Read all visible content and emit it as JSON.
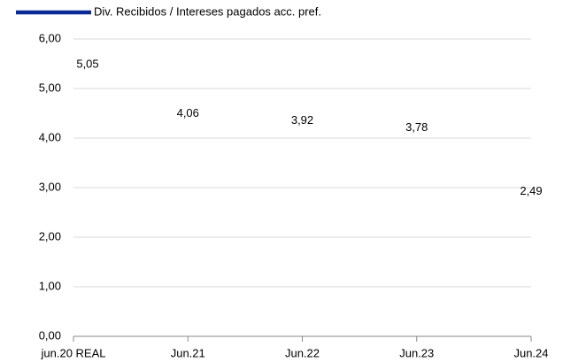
{
  "chart_data": {
    "type": "line",
    "categories": [
      "jun.20 REAL",
      "Jun.21",
      "Jun.22",
      "Jun.23",
      "Jun.24"
    ],
    "series": [
      {
        "name": "Div. Recibidos / Intereses pagados acc. pref.",
        "color": "#0a2a96",
        "values": [
          5.05,
          4.06,
          3.92,
          3.78,
          2.49
        ],
        "value_labels": [
          "5,05",
          "4,06",
          "3,92",
          "3,78",
          "2,49"
        ]
      }
    ],
    "ylim": [
      0,
      6
    ],
    "yticks": [
      {
        "value": 0,
        "label": "0,00"
      },
      {
        "value": 1,
        "label": "1,00"
      },
      {
        "value": 2,
        "label": "2,00"
      },
      {
        "value": 3,
        "label": "3,00"
      },
      {
        "value": 4,
        "label": "4,00"
      },
      {
        "value": 5,
        "label": "5,00"
      },
      {
        "value": 6,
        "label": "6,00"
      }
    ],
    "grid": true,
    "legend": "top-left"
  }
}
